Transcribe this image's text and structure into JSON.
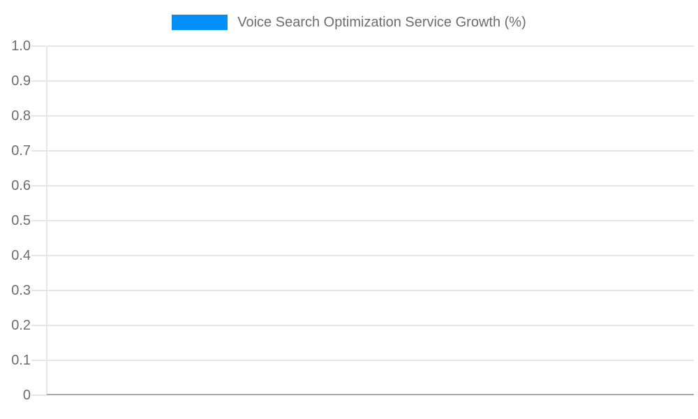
{
  "legend": {
    "swatch_color": "#008FFB",
    "label": "Voice Search Optimization Service Growth (%)"
  },
  "colors": {
    "background": "#ffffff",
    "grid_line": "#e6e6e6",
    "axis_line": "#a9a9a9",
    "text": "#6d6d6d",
    "accent": "#008FFB"
  },
  "chart_data": {
    "type": "bar",
    "title": "Voice Search Optimization Service Growth (%)",
    "categories": [],
    "series": [
      {
        "name": "Voice Search Optimization Service Growth (%)",
        "values": []
      }
    ],
    "xlabel": "",
    "ylabel": "",
    "ylim": [
      0,
      1.0
    ],
    "ytick_step": 0.1,
    "ytick_labels": [
      "1.0",
      "0.9",
      "0.8",
      "0.7",
      "0.6",
      "0.5",
      "0.4",
      "0.3",
      "0.2",
      "0.1",
      "0"
    ],
    "grid": "horizontal",
    "legend_position": "top-center"
  }
}
